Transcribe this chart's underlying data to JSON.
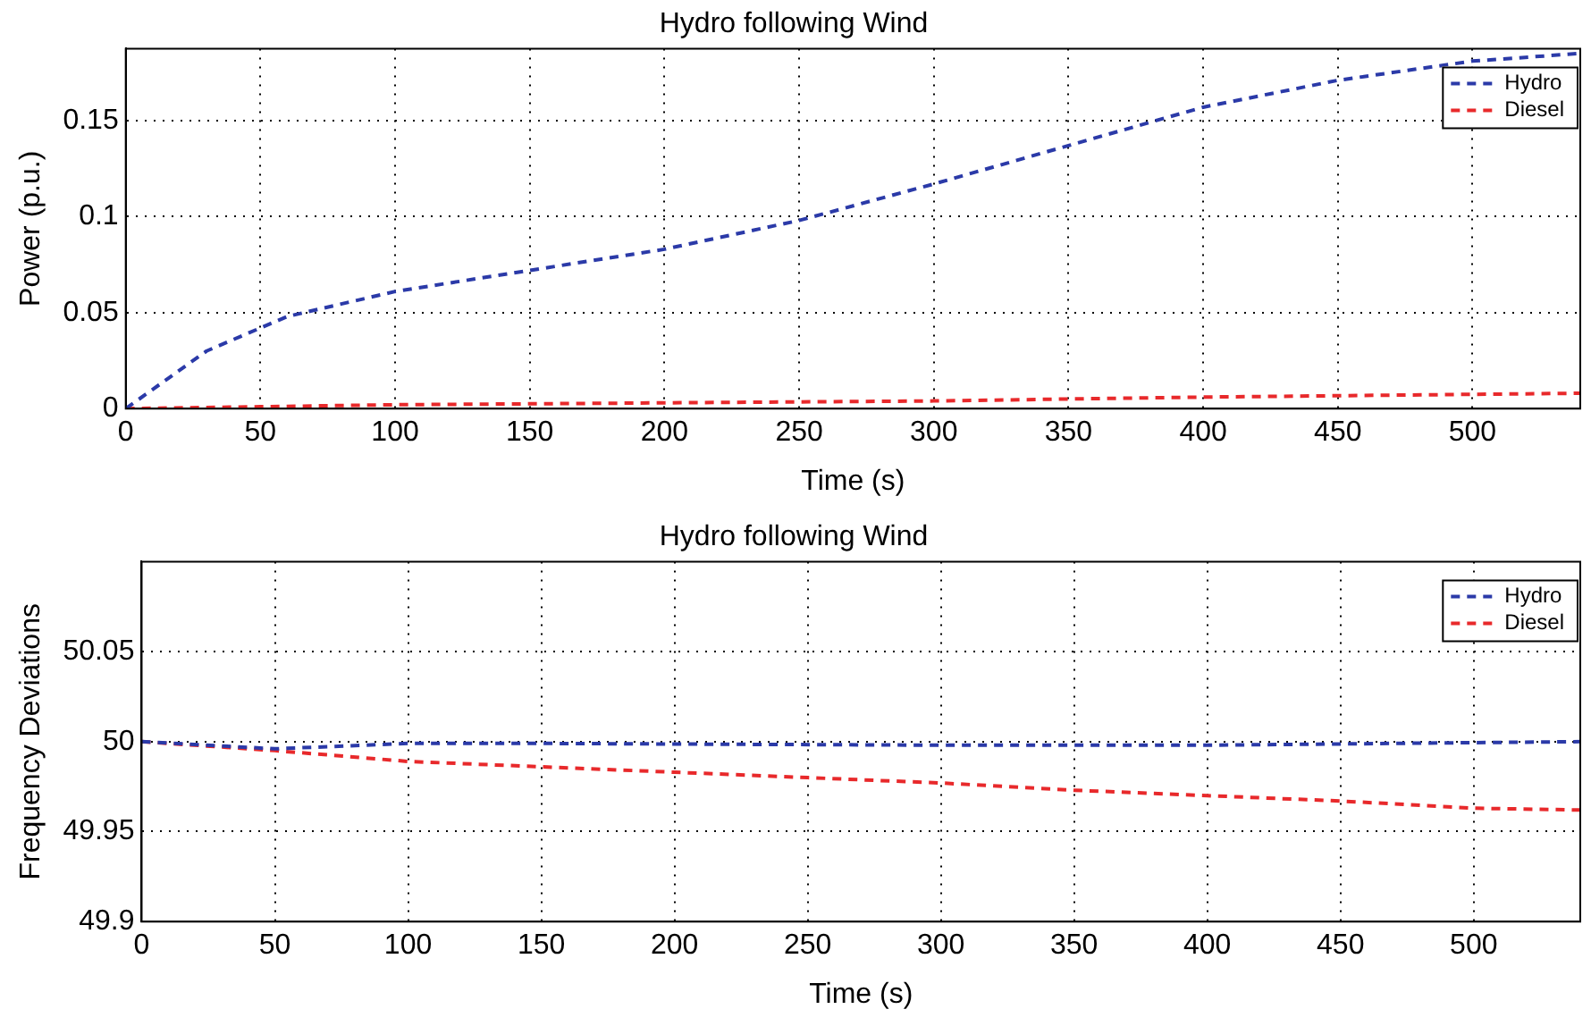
{
  "chart_data": [
    {
      "type": "line",
      "title": "Hydro following Wind",
      "xlabel": "Time (s)",
      "ylabel": "Power (p.u.)",
      "xlim": [
        0,
        540
      ],
      "xticks": [
        0,
        50,
        100,
        150,
        200,
        250,
        300,
        350,
        400,
        450,
        500
      ],
      "ylim": [
        0,
        0.1875
      ],
      "yticks": [
        0,
        0.05,
        0.1,
        0.15
      ],
      "grid": true,
      "legend": "top right",
      "line_style": "dashed",
      "marker": "none",
      "series": [
        {
          "name": "Hydro",
          "color": "#2b3aa8",
          "x": [
            0,
            30,
            60,
            100,
            150,
            200,
            250,
            300,
            350,
            400,
            450,
            500,
            540
          ],
          "values": [
            0,
            0.03,
            0.048,
            0.061,
            0.072,
            0.083,
            0.098,
            0.117,
            0.137,
            0.157,
            0.171,
            0.181,
            0.185
          ]
        },
        {
          "name": "Diesel",
          "color": "#e8292b",
          "x": [
            0,
            50,
            100,
            200,
            300,
            400,
            540
          ],
          "values": [
            0,
            0.001,
            0.002,
            0.003,
            0.004,
            0.006,
            0.008
          ]
        }
      ]
    },
    {
      "type": "line",
      "title": "Hydro following Wind",
      "xlabel": "Time (s)",
      "ylabel": "Frequency Deviations",
      "xlim": [
        0,
        540
      ],
      "xticks": [
        0,
        50,
        100,
        150,
        200,
        250,
        300,
        350,
        400,
        450,
        500
      ],
      "ylim": [
        49.9,
        50.1
      ],
      "yticks": [
        49.9,
        49.95,
        50,
        50.05
      ],
      "grid": true,
      "legend": "top right",
      "line_style": "dashed",
      "marker": "none",
      "series": [
        {
          "name": "Hydro",
          "color": "#2b3aa8",
          "x": [
            0,
            50,
            100,
            150,
            300,
            400,
            540
          ],
          "values": [
            50,
            49.996,
            49.999,
            49.999,
            49.998,
            49.998,
            50
          ]
        },
        {
          "name": "Diesel",
          "color": "#e8292b",
          "x": [
            0,
            50,
            100,
            200,
            250,
            300,
            350,
            400,
            450,
            500,
            540
          ],
          "values": [
            50,
            49.995,
            49.989,
            49.983,
            49.98,
            49.977,
            49.973,
            49.97,
            49.967,
            49.963,
            49.962
          ]
        }
      ]
    }
  ]
}
